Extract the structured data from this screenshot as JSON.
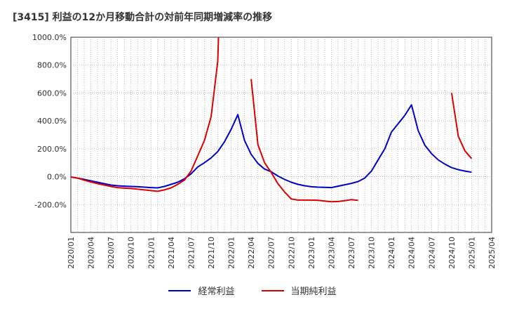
{
  "chart_data": {
    "type": "line",
    "title": "[3415]  利益の12か月移動合計の対前年同期増減率の推移",
    "xlabel": "",
    "ylabel": "",
    "ylim": [
      -400,
      1000
    ],
    "y_ticks": [
      -200,
      0,
      200,
      400,
      600,
      800,
      1000
    ],
    "y_tick_labels": [
      "-200.0%",
      "0.0%",
      "200.0%",
      "400.0%",
      "600.0%",
      "800.0%",
      "1000.0%"
    ],
    "x_tick_labels": [
      "2020/01",
      "2020/04",
      "2020/07",
      "2020/10",
      "2021/01",
      "2021/04",
      "2021/07",
      "2021/10",
      "2022/01",
      "2022/04",
      "2022/07",
      "2022/10",
      "2023/01",
      "2023/04",
      "2023/07",
      "2023/10",
      "2024/01",
      "2024/04",
      "2024/07",
      "2024/10",
      "2025/01",
      "2025/04"
    ],
    "grid": true,
    "legend_position": "bottom",
    "series": [
      {
        "name": "経常利益",
        "color": "#0000cc",
        "points": [
          [
            "2020/01",
            -2
          ],
          [
            "2020/02",
            -10
          ],
          [
            "2020/03",
            -20
          ],
          [
            "2020/04",
            -30
          ],
          [
            "2020/05",
            -40
          ],
          [
            "2020/06",
            -50
          ],
          [
            "2020/07",
            -60
          ],
          [
            "2020/08",
            -65
          ],
          [
            "2020/09",
            -68
          ],
          [
            "2020/10",
            -70
          ],
          [
            "2020/11",
            -72
          ],
          [
            "2020/12",
            -75
          ],
          [
            "2021/01",
            -78
          ],
          [
            "2021/02",
            -80
          ],
          [
            "2021/03",
            -70
          ],
          [
            "2021/04",
            -55
          ],
          [
            "2021/05",
            -40
          ],
          [
            "2021/06",
            -15
          ],
          [
            "2021/07",
            20
          ],
          [
            "2021/08",
            70
          ],
          [
            "2021/09",
            100
          ],
          [
            "2021/10",
            135
          ],
          [
            "2021/11",
            180
          ],
          [
            "2021/12",
            250
          ],
          [
            "2022/01",
            340
          ],
          [
            "2022/02",
            445
          ],
          [
            "2022/03",
            260
          ],
          [
            "2022/04",
            160
          ],
          [
            "2022/05",
            95
          ],
          [
            "2022/06",
            55
          ],
          [
            "2022/07",
            35
          ],
          [
            "2022/08",
            5
          ],
          [
            "2022/09",
            -20
          ],
          [
            "2022/10",
            -40
          ],
          [
            "2022/11",
            -55
          ],
          [
            "2022/12",
            -65
          ],
          [
            "2023/01",
            -72
          ],
          [
            "2023/02",
            -75
          ],
          [
            "2023/03",
            -76
          ],
          [
            "2023/04",
            -78
          ],
          [
            "2023/05",
            -68
          ],
          [
            "2023/06",
            -58
          ],
          [
            "2023/07",
            -48
          ],
          [
            "2023/08",
            -35
          ],
          [
            "2023/09",
            -10
          ],
          [
            "2023/10",
            40
          ],
          [
            "2023/11",
            120
          ],
          [
            "2023/12",
            200
          ],
          [
            "2024/01",
            320
          ],
          [
            "2024/02",
            380
          ],
          [
            "2024/03",
            440
          ],
          [
            "2024/04",
            515
          ],
          [
            "2024/05",
            330
          ],
          [
            "2024/06",
            225
          ],
          [
            "2024/07",
            165
          ],
          [
            "2024/08",
            120
          ],
          [
            "2024/09",
            90
          ],
          [
            "2024/10",
            65
          ],
          [
            "2024/11",
            50
          ],
          [
            "2024/12",
            40
          ],
          [
            "2025/01",
            32
          ]
        ]
      },
      {
        "name": "当期純利益",
        "color": "#dd0000",
        "points": [
          [
            "2020/01",
            -2
          ],
          [
            "2020/02",
            -10
          ],
          [
            "2020/03",
            -25
          ],
          [
            "2020/04",
            -38
          ],
          [
            "2020/05",
            -50
          ],
          [
            "2020/06",
            -60
          ],
          [
            "2020/07",
            -70
          ],
          [
            "2020/08",
            -78
          ],
          [
            "2020/09",
            -82
          ],
          [
            "2020/10",
            -85
          ],
          [
            "2020/11",
            -90
          ],
          [
            "2020/12",
            -95
          ],
          [
            "2021/01",
            -100
          ],
          [
            "2021/02",
            -105
          ],
          [
            "2021/03",
            -95
          ],
          [
            "2021/04",
            -80
          ],
          [
            "2021/05",
            -55
          ],
          [
            "2021/06",
            -25
          ],
          [
            "2021/07",
            40
          ],
          [
            "2021/08",
            150
          ],
          [
            "2021/09",
            260
          ],
          [
            "2021/10",
            430
          ],
          [
            "2021/11",
            830
          ],
          [
            "2021/11.1",
            1000
          ],
          null,
          [
            "2022/04",
            700
          ],
          [
            "2022/05",
            230
          ],
          [
            "2022/06",
            100
          ],
          [
            "2022/07",
            30
          ],
          [
            "2022/08",
            -50
          ],
          [
            "2022/09",
            -110
          ],
          [
            "2022/10",
            -160
          ],
          [
            "2022/11",
            -168
          ],
          [
            "2022/12",
            -168
          ],
          [
            "2023/01",
            -168
          ],
          [
            "2023/02",
            -170
          ],
          [
            "2023/03",
            -175
          ],
          [
            "2023/04",
            -180
          ],
          [
            "2023/05",
            -178
          ],
          [
            "2023/06",
            -172
          ],
          [
            "2023/07",
            -165
          ],
          [
            "2023/08",
            -170
          ],
          null,
          [
            "2024/10",
            600
          ],
          [
            "2024/11",
            290
          ],
          [
            "2024/12",
            185
          ],
          [
            "2025/01",
            130
          ]
        ]
      }
    ]
  }
}
